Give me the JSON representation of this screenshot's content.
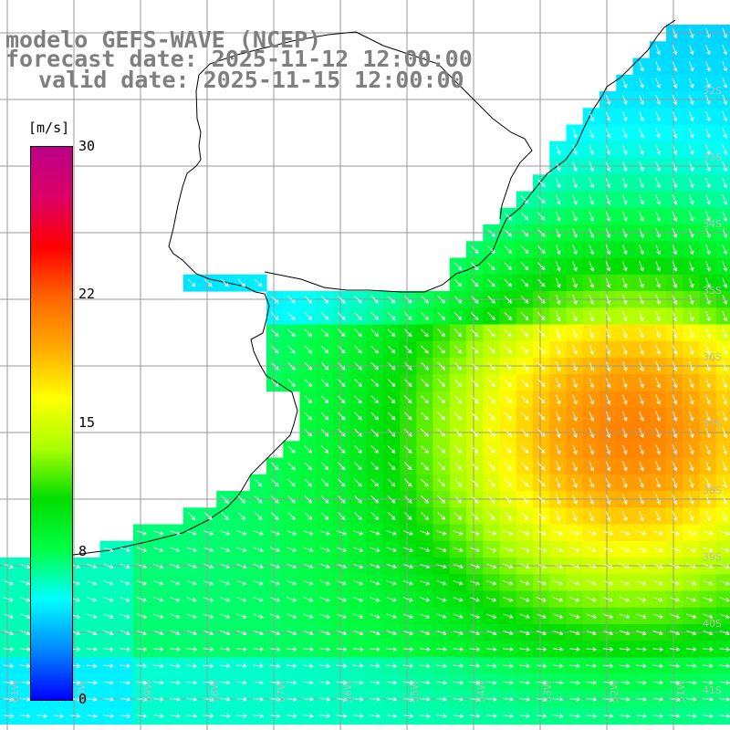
{
  "header": {
    "model": "modelo GEFS-WAVE (NCEP)",
    "forecast_date": "forecast date: 2025-11-12 12:00:00",
    "valid_date": "valid date: 2025-11-15 12:00:00"
  },
  "colorbar": {
    "unit": "[m/s]",
    "min": 0,
    "max": 30,
    "ticks": [
      {
        "label": "30",
        "value": 30
      },
      {
        "label": "22",
        "value": 22
      },
      {
        "label": "15",
        "value": 15
      },
      {
        "label": "8",
        "value": 8
      },
      {
        "label": "0",
        "value": 0
      }
    ],
    "colors": [
      "#0000ff",
      "#0088ff",
      "#00ffff",
      "#00ff44",
      "#00dd00",
      "#aaff00",
      "#ffff00",
      "#ffaa00",
      "#ff6600",
      "#ff0000",
      "#dd0066",
      "#bb0088"
    ]
  },
  "map": {
    "lat_labels": [
      "32S",
      "33S",
      "34S",
      "35S",
      "36S",
      "37S",
      "38S",
      "39S",
      "40S",
      "41S"
    ],
    "lon_labels": [
      "61W",
      "60W",
      "59W",
      "58W",
      "57W",
      "56W",
      "55W",
      "54W",
      "53W",
      "52W",
      "51W"
    ],
    "land_color": "#ffffff",
    "grid_color": "#999999",
    "coast_color": "#000000"
  }
}
